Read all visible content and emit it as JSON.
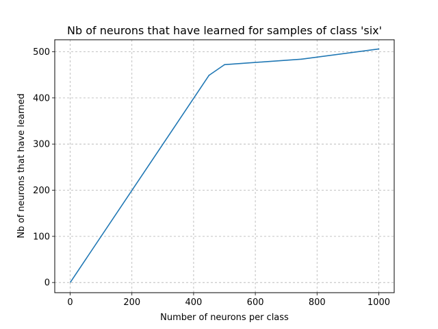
{
  "chart_data": {
    "type": "line",
    "title": "Nb of neurons that have learned for samples of class 'six'",
    "xlabel": "Number of neurons per class",
    "ylabel": "Nb of neurons that have learned",
    "xlim": [
      -50,
      1050
    ],
    "ylim": [
      -22,
      526
    ],
    "xticks": [
      0,
      200,
      400,
      600,
      800,
      1000
    ],
    "yticks": [
      0,
      100,
      200,
      300,
      400,
      500
    ],
    "grid": true,
    "series": [
      {
        "color": "#1f77b4",
        "x": [
          1,
          450,
          500,
          750,
          1000
        ],
        "y": [
          1,
          449,
          472,
          484,
          506
        ]
      }
    ]
  }
}
